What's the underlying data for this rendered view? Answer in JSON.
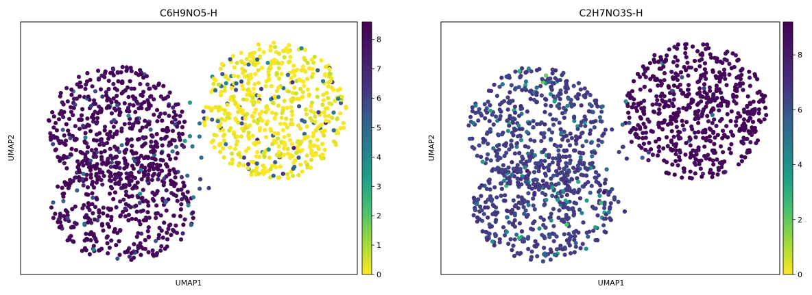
{
  "chart_data": [
    {
      "type": "scatter",
      "title": "C6H9NO5-H",
      "xlabel": "UMAP1",
      "ylabel": "UMAP2",
      "colormap": "viridis_r",
      "colorbar": {
        "min": 0,
        "max": 8.6,
        "ticks": [
          "0",
          "1",
          "2",
          "3",
          "4",
          "5",
          "6",
          "7",
          "8"
        ]
      },
      "grid": false,
      "clusters": [
        {
          "name": "left",
          "typical_value": 8.3,
          "shown_by": "dark purple points"
        },
        {
          "name": "right",
          "typical_value": 0.1,
          "shown_by": "yellow points"
        }
      ]
    },
    {
      "type": "scatter",
      "title": "C2H7NO3S-H",
      "xlabel": "UMAP1",
      "ylabel": "UMAP2",
      "colormap": "viridis_r",
      "colorbar": {
        "min": 0,
        "max": 9.2,
        "ticks": [
          "0",
          "2",
          "4",
          "6",
          "8"
        ]
      },
      "grid": false,
      "clusters": [
        {
          "name": "left",
          "typical_value": 6.6,
          "shown_by": "slate blue points"
        },
        {
          "name": "right",
          "typical_value": 8.9,
          "shown_by": "dark purple points"
        }
      ]
    }
  ]
}
